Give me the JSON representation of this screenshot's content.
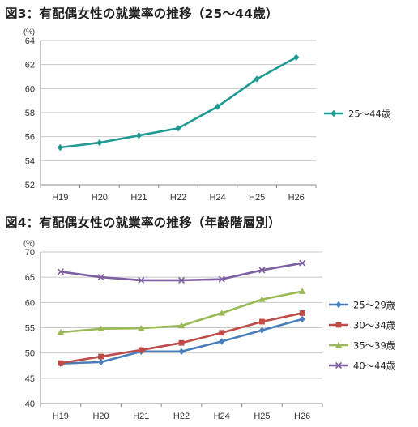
{
  "chart_data": [
    {
      "type": "line",
      "title": "図3：有配偶女性の就業率の推移（25～44歳）",
      "ylabel": "(%)",
      "categories": [
        "H19",
        "H20",
        "H21",
        "H22",
        "H24",
        "H25",
        "H26"
      ],
      "ylim": [
        52,
        64
      ],
      "yticks": [
        52,
        54,
        56,
        58,
        60,
        62,
        64
      ],
      "grid": true,
      "legend": "right",
      "series": [
        {
          "name": "25～44歳",
          "color": "#1f9a93",
          "marker": "diamond",
          "values": [
            55.1,
            55.5,
            56.1,
            56.7,
            58.5,
            60.8,
            62.6
          ]
        }
      ]
    },
    {
      "type": "line",
      "title": "図4：有配偶女性の就業率の推移（年齢階層別）",
      "ylabel": "(%)",
      "categories": [
        "H19",
        "H20",
        "H21",
        "H22",
        "H24",
        "H25",
        "H26"
      ],
      "ylim": [
        40,
        70
      ],
      "yticks": [
        40,
        45,
        50,
        55,
        60,
        65,
        70
      ],
      "grid": true,
      "legend": "right",
      "series": [
        {
          "name": "25～29歳",
          "color": "#4a7ebb",
          "marker": "diamond",
          "values": [
            47.9,
            48.2,
            50.3,
            50.3,
            52.3,
            54.5,
            56.7
          ]
        },
        {
          "name": "30～34歳",
          "color": "#be4b48",
          "marker": "square",
          "values": [
            48.0,
            49.3,
            50.6,
            52.0,
            54.0,
            56.2,
            57.9
          ]
        },
        {
          "name": "35～39歳",
          "color": "#98b954",
          "marker": "triangle",
          "values": [
            54.1,
            54.8,
            54.9,
            55.4,
            57.9,
            60.6,
            62.2
          ]
        },
        {
          "name": "40～44歳",
          "color": "#7d5fa0",
          "marker": "x",
          "values": [
            66.1,
            65.0,
            64.4,
            64.4,
            64.6,
            66.4,
            67.8
          ]
        }
      ]
    }
  ]
}
